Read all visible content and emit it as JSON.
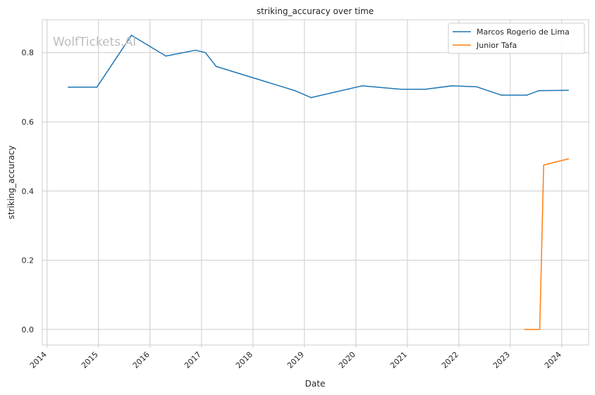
{
  "chart_data": {
    "type": "line",
    "title": "striking_accuracy over time",
    "xlabel": "Date",
    "ylabel": "striking_accuracy",
    "watermark": "WolfTickets.AI",
    "x_ticks": [
      "2014",
      "2015",
      "2016",
      "2017",
      "2018",
      "2019",
      "2020",
      "2021",
      "2022",
      "2023",
      "2024"
    ],
    "y_ticks": [
      "0.0",
      "0.2",
      "0.4",
      "0.6",
      "0.8"
    ],
    "y_tick_values": [
      0.0,
      0.2,
      0.4,
      0.6,
      0.8
    ],
    "xlim": [
      "2013-11-28",
      "2024-07-10"
    ],
    "ylim": [
      -0.045,
      0.895
    ],
    "grid": true,
    "legend_position": "top-right",
    "series": [
      {
        "name": "Marcos Rogerio de Lima",
        "color": "#1f77b4",
        "points": [
          [
            "2014-05-31",
            0.7
          ],
          [
            "2014-12-20",
            0.7
          ],
          [
            "2015-08-23",
            0.85
          ],
          [
            "2016-04-23",
            0.79
          ],
          [
            "2016-11-19",
            0.807
          ],
          [
            "2017-01-28",
            0.8
          ],
          [
            "2017-04-15",
            0.76
          ],
          [
            "2018-10-27",
            0.69
          ],
          [
            "2019-02-17",
            0.67
          ],
          [
            "2020-02-15",
            0.704
          ],
          [
            "2020-11-14",
            0.694
          ],
          [
            "2021-05-08",
            0.694
          ],
          [
            "2021-11-13",
            0.704
          ],
          [
            "2022-05-07",
            0.701
          ],
          [
            "2022-10-29",
            0.677
          ],
          [
            "2023-04-29",
            0.677
          ],
          [
            "2023-07-22",
            0.69
          ],
          [
            "2024-02-17",
            0.691
          ]
        ]
      },
      {
        "name": "Junior Tafa",
        "color": "#ff7f0e",
        "points": [
          [
            "2023-04-15",
            0.0
          ],
          [
            "2023-07-29",
            0.0
          ],
          [
            "2023-08-26",
            0.475
          ],
          [
            "2024-02-17",
            0.493
          ]
        ]
      }
    ]
  }
}
